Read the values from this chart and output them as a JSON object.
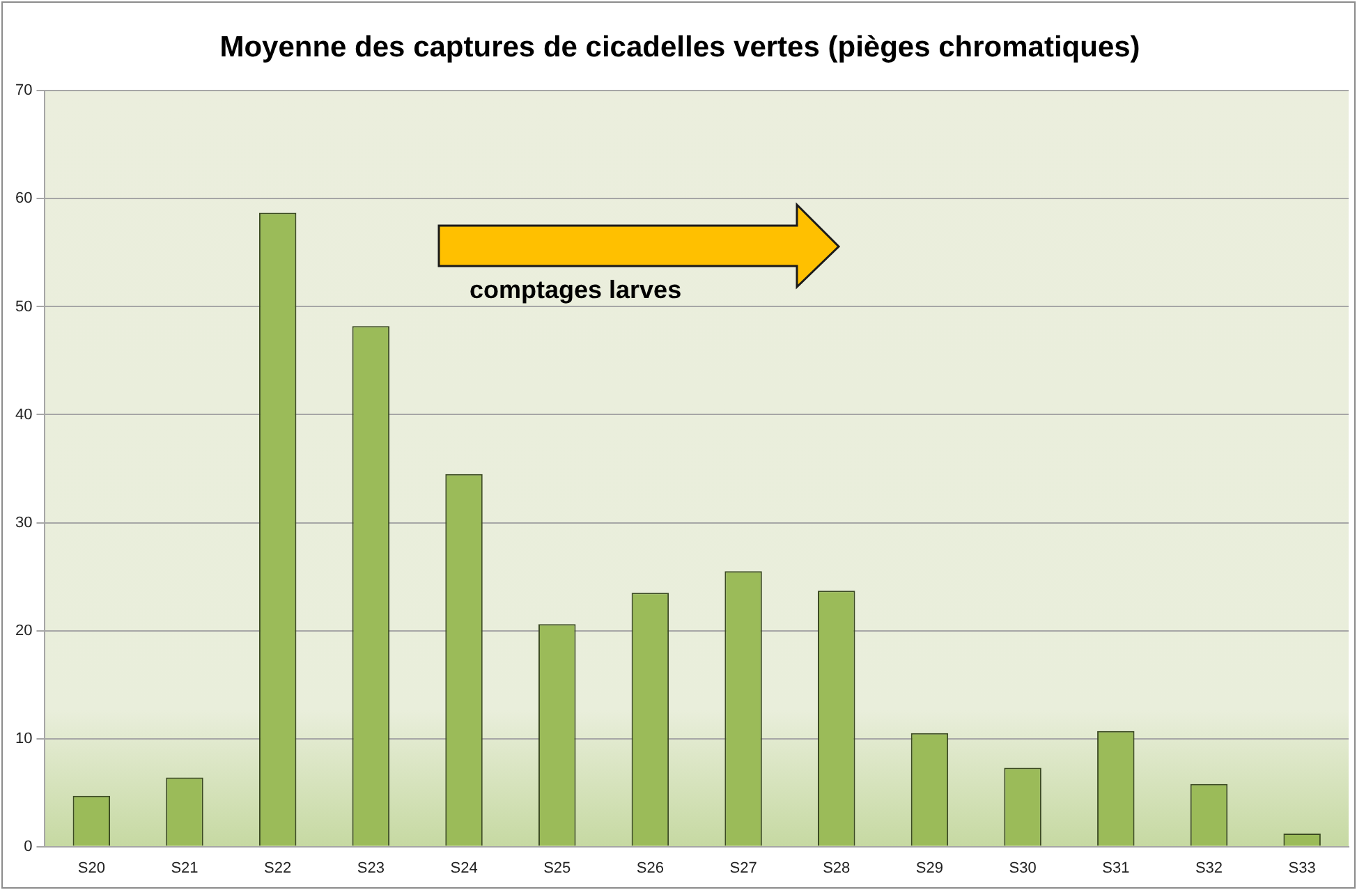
{
  "chart_data": {
    "type": "bar",
    "title": "Moyenne des captures de cicadelles vertes (pièges chromatiques)",
    "categories": [
      "S20",
      "S21",
      "S22",
      "S23",
      "S24",
      "S25",
      "S26",
      "S27",
      "S28",
      "S29",
      "S30",
      "S31",
      "S32",
      "S33"
    ],
    "values": [
      4.7,
      6.4,
      58.7,
      48.2,
      34.5,
      20.6,
      23.5,
      25.5,
      23.7,
      10.5,
      7.3,
      10.7,
      5.8,
      1.2
    ],
    "color": "#9bbb59",
    "ylim": [
      0,
      70
    ],
    "yticks": [
      0,
      10,
      20,
      30,
      40,
      50,
      60,
      70
    ],
    "grid": "y",
    "legend": false,
    "annotations": [
      "comptages larves"
    ]
  }
}
